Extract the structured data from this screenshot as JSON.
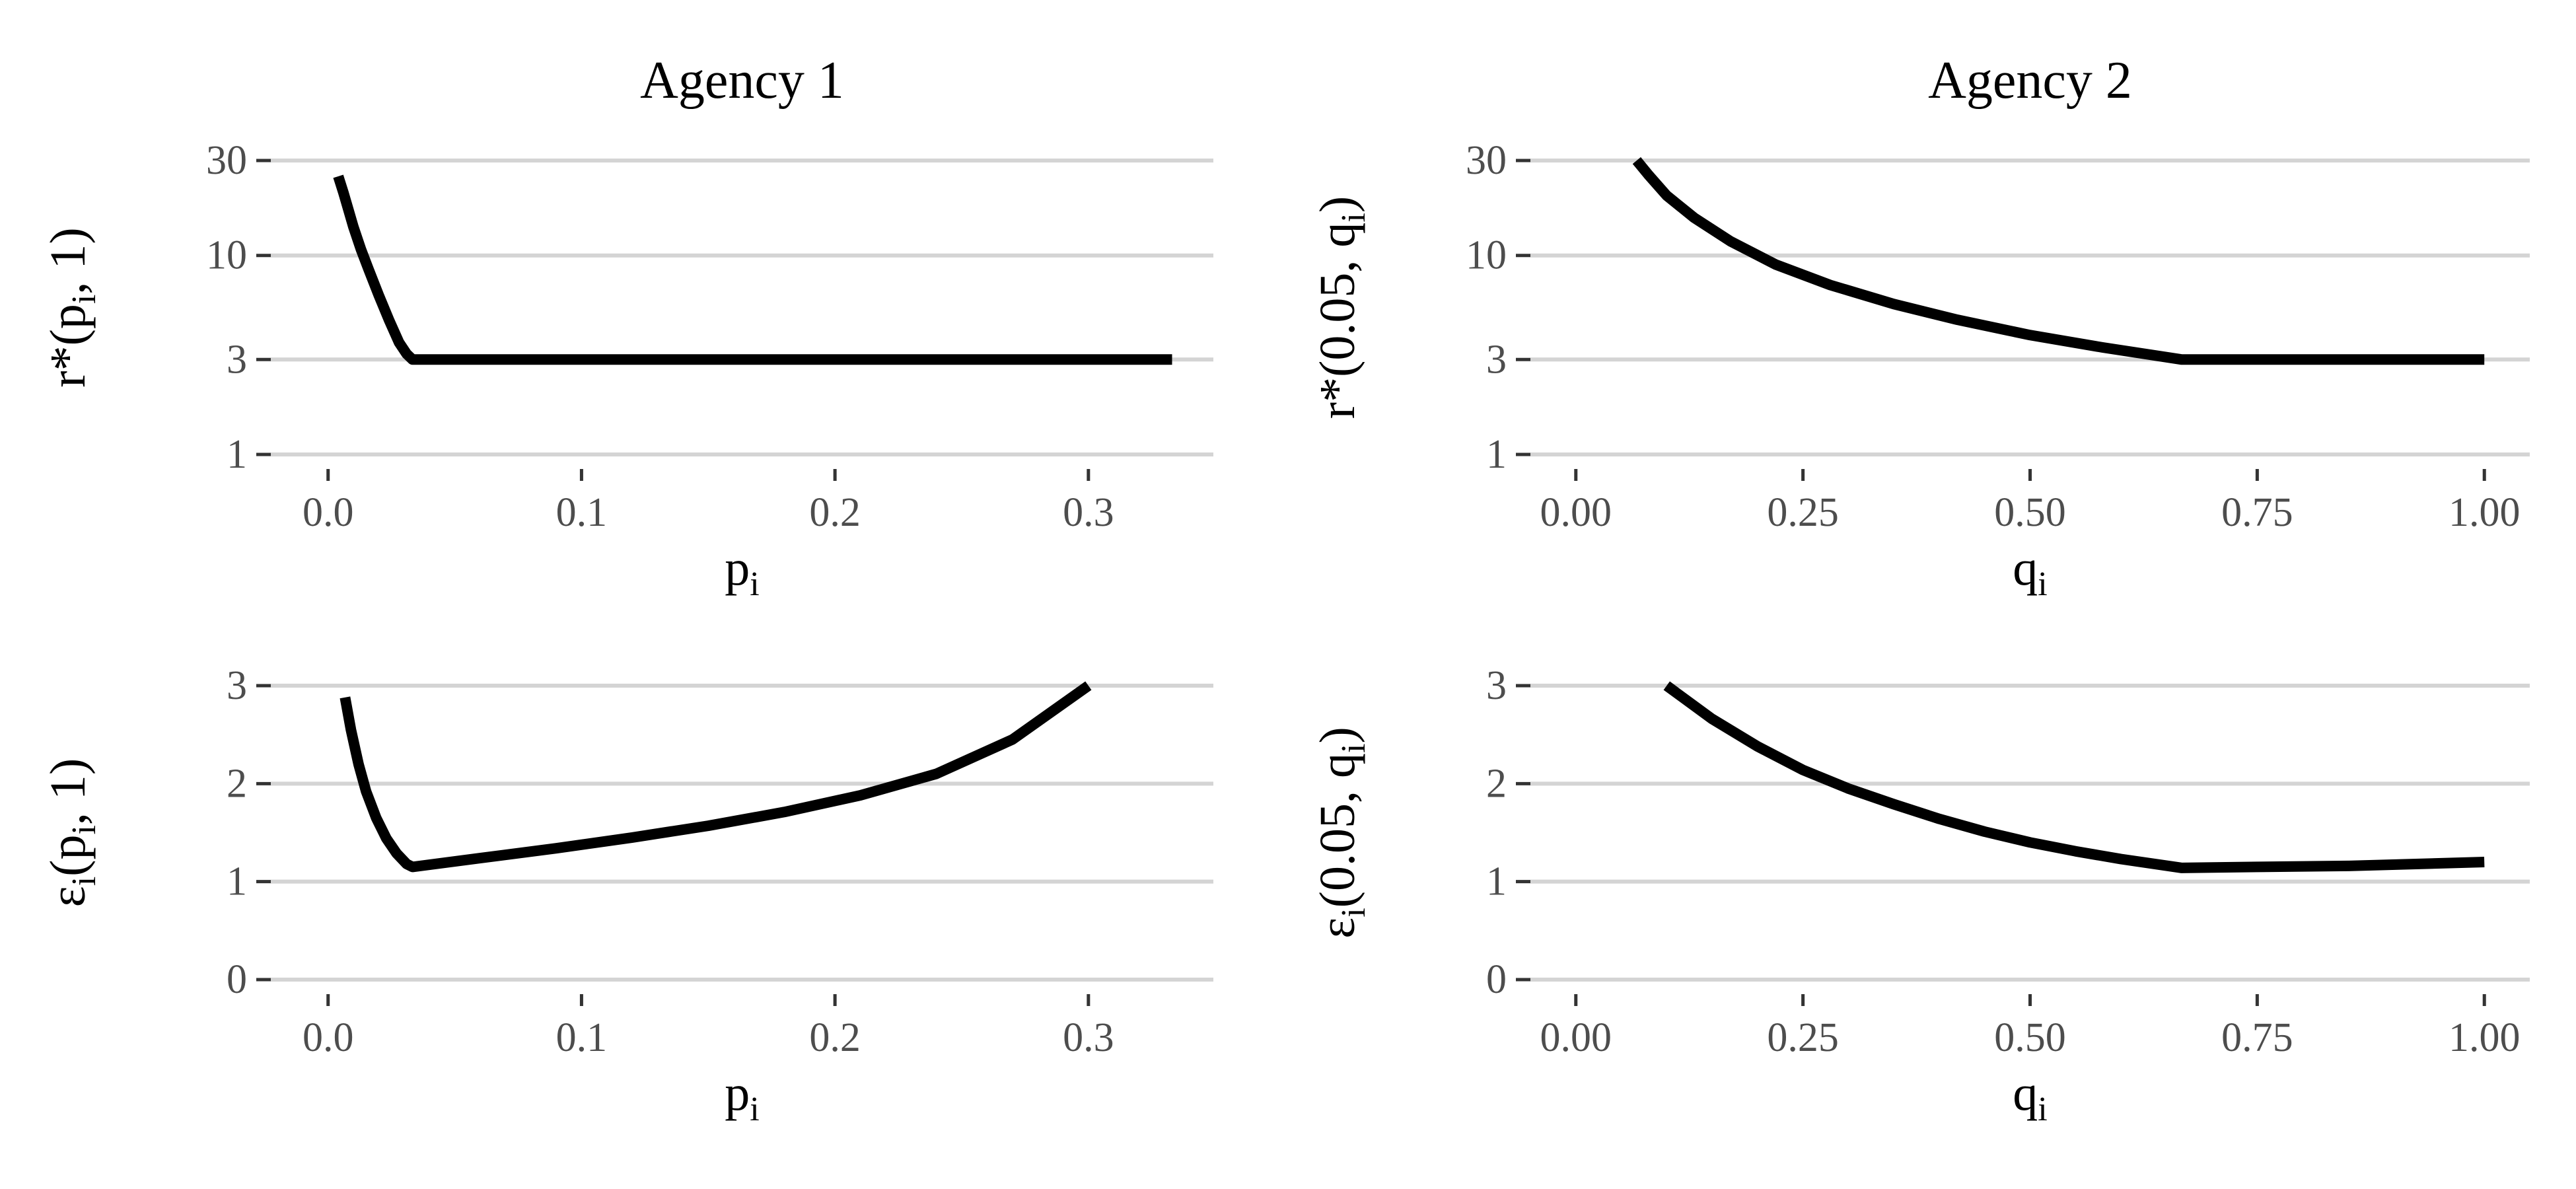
{
  "chart_data": [
    {
      "type": "line",
      "title": "Agency 1",
      "xlabel": {
        "base": "p",
        "sub": "i"
      },
      "ylabel": {
        "parts": [
          {
            "t": "r*(p"
          },
          {
            "t": "i",
            "sub": true
          },
          {
            "t": ", 1)"
          }
        ]
      },
      "y_scale": "log",
      "xlim": [
        0,
        0.333
      ],
      "ylim": [
        1,
        30
      ],
      "x_ticks": [
        0.0,
        0.1,
        0.2,
        0.3
      ],
      "x_tick_labels": [
        "0.0",
        "0.1",
        "0.2",
        "0.3"
      ],
      "y_ticks": [
        1,
        3,
        10,
        30
      ],
      "y_tick_labels": [
        "1",
        "3",
        "10",
        "30"
      ],
      "grid": "horizontal",
      "series": [
        {
          "x": [
            0.004,
            0.006,
            0.008,
            0.01,
            0.013,
            0.016,
            0.02,
            0.024,
            0.028,
            0.031,
            0.0333,
            0.05,
            0.1,
            0.15,
            0.2,
            0.25,
            0.3,
            0.333
          ],
          "y": [
            25.0,
            20.8,
            17.0,
            13.9,
            10.7,
            8.5,
            6.3,
            4.75,
            3.65,
            3.2,
            3.0,
            3.0,
            3.0,
            3.0,
            3.0,
            3.0,
            3.0,
            3.0
          ]
        }
      ]
    },
    {
      "type": "line",
      "title": "Agency 2",
      "xlabel": {
        "base": "q",
        "sub": "i"
      },
      "ylabel": {
        "parts": [
          {
            "t": "r*(0.05, q"
          },
          {
            "t": "i",
            "sub": true
          },
          {
            "t": ")"
          }
        ]
      },
      "y_scale": "log",
      "xlim": [
        0,
        1
      ],
      "ylim": [
        1,
        30
      ],
      "x_ticks": [
        0.0,
        0.25,
        0.5,
        0.75,
        1.0
      ],
      "x_tick_labels": [
        "0.00",
        "0.25",
        "0.50",
        "0.75",
        "1.00"
      ],
      "y_ticks": [
        1,
        3,
        10,
        30
      ],
      "y_tick_labels": [
        "1",
        "3",
        "10",
        "30"
      ],
      "grid": "horizontal",
      "series": [
        {
          "x": [
            0.067,
            0.08,
            0.1,
            0.13,
            0.17,
            0.22,
            0.28,
            0.35,
            0.42,
            0.5,
            0.58,
            0.667,
            0.75,
            0.85,
            1.0
          ],
          "y": [
            30.0,
            25.4,
            20.0,
            15.5,
            11.8,
            9.0,
            7.1,
            5.7,
            4.75,
            3.98,
            3.45,
            3.0,
            3.0,
            3.0,
            3.0
          ]
        }
      ]
    },
    {
      "type": "line",
      "title": "",
      "xlabel": {
        "base": "p",
        "sub": "i"
      },
      "ylabel": {
        "parts": [
          {
            "t": "ε"
          },
          {
            "t": "i",
            "sub": true
          },
          {
            "t": "(p"
          },
          {
            "t": "i",
            "sub": true
          },
          {
            "t": ", 1)"
          }
        ]
      },
      "y_scale": "linear",
      "xlim": [
        0,
        0.333
      ],
      "ylim": [
        0,
        3
      ],
      "x_ticks": [
        0.0,
        0.1,
        0.2,
        0.3
      ],
      "x_tick_labels": [
        "0.0",
        "0.1",
        "0.2",
        "0.3"
      ],
      "y_ticks": [
        0,
        1,
        2,
        3
      ],
      "y_tick_labels": [
        "0",
        "1",
        "2",
        "3"
      ],
      "grid": "horizontal",
      "series": [
        {
          "x": [
            0.0067,
            0.009,
            0.012,
            0.015,
            0.019,
            0.023,
            0.027,
            0.031,
            0.0333,
            0.06,
            0.09,
            0.12,
            0.15,
            0.18,
            0.21,
            0.24,
            0.27,
            0.3
          ],
          "y": [
            2.88,
            2.55,
            2.2,
            1.92,
            1.65,
            1.44,
            1.29,
            1.18,
            1.15,
            1.24,
            1.34,
            1.45,
            1.57,
            1.71,
            1.88,
            2.1,
            2.45,
            3.0
          ]
        }
      ]
    },
    {
      "type": "line",
      "title": "",
      "xlabel": {
        "base": "q",
        "sub": "i"
      },
      "ylabel": {
        "parts": [
          {
            "t": "ε"
          },
          {
            "t": "i",
            "sub": true
          },
          {
            "t": "(0.05, q"
          },
          {
            "t": "i",
            "sub": true
          },
          {
            "t": ")"
          }
        ]
      },
      "y_scale": "linear",
      "xlim": [
        0,
        1
      ],
      "ylim": [
        0,
        3
      ],
      "x_ticks": [
        0.0,
        0.25,
        0.5,
        0.75,
        1.0
      ],
      "x_tick_labels": [
        "0.00",
        "0.25",
        "0.50",
        "0.75",
        "1.00"
      ],
      "y_ticks": [
        0,
        1,
        2,
        3
      ],
      "y_tick_labels": [
        "0",
        "1",
        "2",
        "3"
      ],
      "grid": "horizontal",
      "series": [
        {
          "x": [
            0.1,
            0.15,
            0.2,
            0.25,
            0.3,
            0.35,
            0.4,
            0.45,
            0.5,
            0.55,
            0.6,
            0.667,
            0.75,
            0.85,
            1.0
          ],
          "y": [
            3.0,
            2.66,
            2.38,
            2.14,
            1.95,
            1.79,
            1.64,
            1.51,
            1.4,
            1.31,
            1.23,
            1.14,
            1.15,
            1.16,
            1.2
          ]
        }
      ]
    }
  ]
}
